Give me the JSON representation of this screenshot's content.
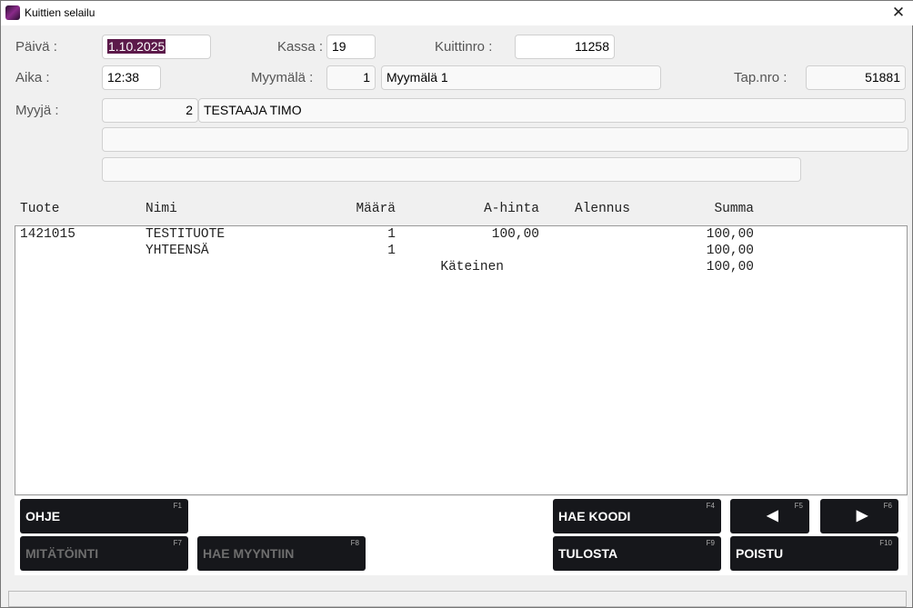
{
  "window": {
    "title": "Kuittien selailu"
  },
  "form": {
    "paiva_label": "Päivä :",
    "paiva": "1.10.2025",
    "kassa_label": "Kassa :",
    "kassa": "19",
    "kuittinro_label": "Kuittinro :",
    "kuittinro": "11258",
    "aika_label": "Aika :",
    "aika": "12:38",
    "myymala_label": "Myymälä :",
    "myymala_nro": "1",
    "myymala_nimi": "Myymälä 1",
    "tapnro_label": "Tap.nro :",
    "tapnro": "51881",
    "myyja_label": "Myyjä :",
    "myyja_nro": "2",
    "myyja_nimi": "TESTAAJA TIMO",
    "extra1": "",
    "extra2": ""
  },
  "table": {
    "headers": [
      "Tuote",
      "Nimi",
      "Määrä",
      "A-hinta",
      "Alennus",
      "Summa"
    ],
    "rows": [
      {
        "tuote": "1421015",
        "nimi": "TESTITUOTE",
        "maara": "1",
        "ahinta": "100,00",
        "alennus": "",
        "summa": "100,00"
      },
      {
        "tuote": "",
        "nimi": "YHTEENSÄ",
        "maara": "1",
        "ahinta": "",
        "alennus": "",
        "summa": "100,00"
      },
      {
        "tuote": "",
        "nimi": "",
        "maara": "",
        "ahinta": "Käteinen",
        "alennus": "",
        "summa": "100,00"
      }
    ]
  },
  "buttons": {
    "ohje": {
      "label": "OHJE",
      "key": "F1"
    },
    "hae_koodi": {
      "label": "HAE KOODI",
      "key": "F4"
    },
    "prev": {
      "label": "◀",
      "key": "F5"
    },
    "next": {
      "label": "▶",
      "key": "F6"
    },
    "mitatointi": {
      "label": "MITÄTÖINTI",
      "key": "F7"
    },
    "hae_myyntiin": {
      "label": "HAE MYYNTIIN",
      "key": "F8"
    },
    "tulosta": {
      "label": "TULOSTA",
      "key": "F9"
    },
    "poistu": {
      "label": "POISTU",
      "key": "F10"
    }
  }
}
